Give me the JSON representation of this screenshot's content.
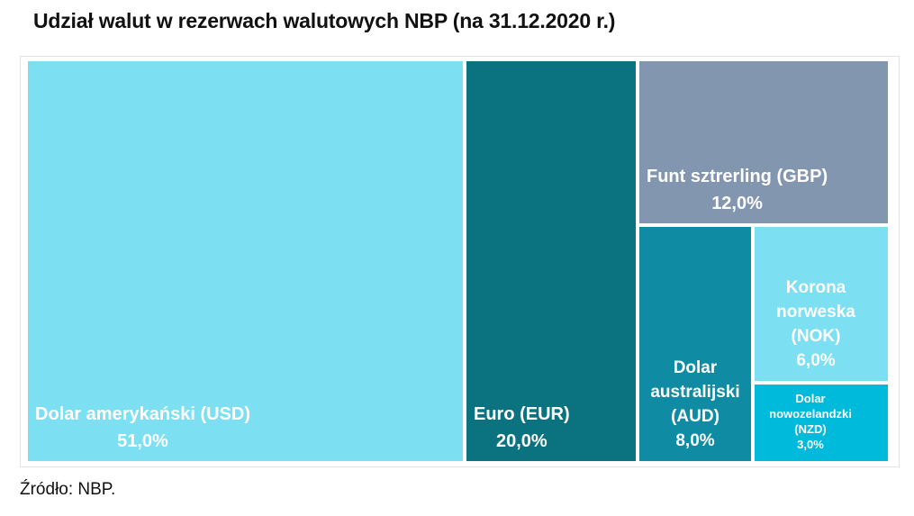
{
  "title": "Udział walut w rezerwach walutowych NBP (na 31.12.2020 r.)",
  "source": "Źródło: NBP.",
  "chart_data": {
    "type": "treemap",
    "title": "Udział walut w rezerwach walutowych NBP (na 31.12.2020 r.)",
    "unit": "%",
    "value_format": "comma-decimal-percent",
    "legend_position": "none",
    "label_text_color": "#ffffff",
    "frame_border_color": "#e2e2e2",
    "series": [
      {
        "label": "Dolar amerykański (USD)",
        "value": 51.0,
        "value_label": "51,0%",
        "color": "#7cdff2"
      },
      {
        "label": "Euro (EUR)",
        "value": 20.0,
        "value_label": "20,0%",
        "color": "#0b737f"
      },
      {
        "label": "Funt sztrerling (GBP)",
        "value": 12.0,
        "value_label": "12,0%",
        "color": "#8396af"
      },
      {
        "label": "Dolar australijski (AUD)",
        "value": 8.0,
        "value_label": "8,0%",
        "color": "#0f8ca3"
      },
      {
        "label": "Korona norweska (NOK)",
        "value": 6.0,
        "value_label": "6,0%",
        "color": "#7cdff2"
      },
      {
        "label": "Dolar nowozelandzki (NZD)",
        "value": 3.0,
        "value_label": "3,0%",
        "color": "#00badc"
      }
    ]
  }
}
